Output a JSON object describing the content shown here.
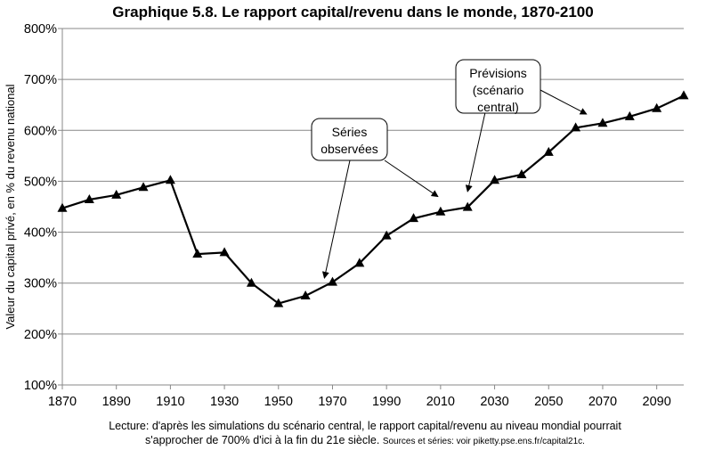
{
  "chart_data": {
    "type": "line",
    "title": "Graphique 5.8. Le rapport capital/revenu dans le monde, 1870-2100",
    "xlabel": "",
    "ylabel": "Valeur du capital privé, en % du revenu national",
    "xlim": [
      1870,
      2100
    ],
    "ylim": [
      100,
      800
    ],
    "x_ticks": [
      1870,
      1890,
      1910,
      1930,
      1950,
      1970,
      1990,
      2010,
      2030,
      2050,
      2070,
      2090
    ],
    "y_ticks": [
      100,
      200,
      300,
      400,
      500,
      600,
      700,
      800
    ],
    "y_tick_labels": [
      "100%",
      "200%",
      "300%",
      "400%",
      "500%",
      "600%",
      "700%",
      "800%"
    ],
    "grid": "horizontal",
    "series": [
      {
        "marker": "triangle",
        "color": "#000000",
        "x": [
          1870,
          1880,
          1890,
          1900,
          1910,
          1920,
          1930,
          1940,
          1950,
          1960,
          1970,
          1980,
          1990,
          2000,
          2010,
          2020,
          2030,
          2040,
          2050,
          2060,
          2070,
          2080,
          2090,
          2100
        ],
        "y": [
          447,
          464,
          473,
          488,
          502,
          357,
          360,
          300,
          260,
          275,
          302,
          339,
          393,
          427,
          440,
          449,
          502,
          513,
          557,
          605,
          614,
          627,
          643,
          668
        ]
      }
    ],
    "annotations": [
      {
        "id": "observed",
        "lines": [
          "Séries",
          "observées"
        ]
      },
      {
        "id": "forecast",
        "lines": [
          "Prévisions",
          "(scénario",
          "central)"
        ]
      }
    ]
  },
  "footnote": {
    "line1": "Lecture: d'après les simulations du scénario central, le rapport capital/revenu au niveau mondial pourrait",
    "line2": "s'approcher de 700% d'ici à la fin du 21e siècle.",
    "source": "Sources et séries: voir piketty.pse.ens.fr/capital21c."
  }
}
